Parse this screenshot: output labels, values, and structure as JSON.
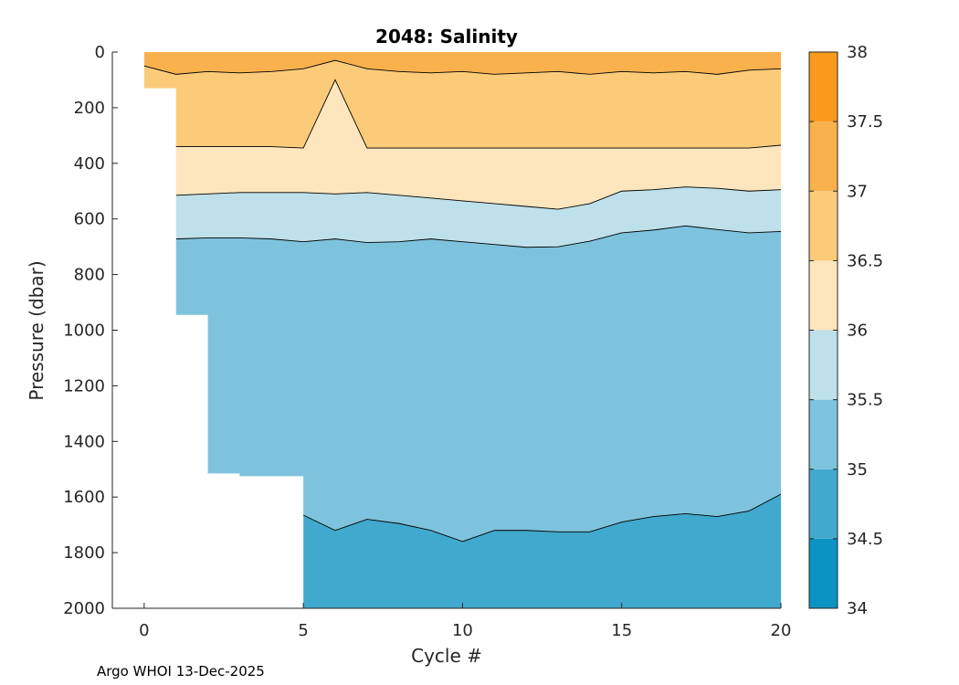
{
  "chart_data": {
    "type": "heatmap",
    "title": "2048:  Salinity",
    "xlabel": "Cycle #",
    "ylabel": "Pressure (dbar)",
    "xlim": [
      -1,
      20
    ],
    "ylim": [
      2000,
      0
    ],
    "xticks": [
      0,
      5,
      10,
      15,
      20
    ],
    "yticks": [
      0,
      200,
      400,
      600,
      800,
      1000,
      1200,
      1400,
      1600,
      1800,
      2000
    ],
    "colorbar": {
      "range": [
        34,
        38
      ],
      "ticks": [
        "34",
        "34.5",
        "35",
        "35.5",
        "36",
        "36.5",
        "37",
        "37.5",
        "38"
      ],
      "levels": [
        {
          "from": 34.0,
          "to": 34.5,
          "color": "#0b93c1"
        },
        {
          "from": 34.5,
          "to": 35.0,
          "color": "#41a9cd"
        },
        {
          "from": 35.0,
          "to": 35.5,
          "color": "#7ec3dd"
        },
        {
          "from": 35.5,
          "to": 36.0,
          "color": "#bee0ea"
        },
        {
          "from": 36.0,
          "to": 36.5,
          "color": "#fde6bd"
        },
        {
          "from": 36.5,
          "to": 37.0,
          "color": "#fbcb7a"
        },
        {
          "from": 37.0,
          "to": 37.5,
          "color": "#f9b14e"
        },
        {
          "from": 37.5,
          "to": 38.0,
          "color": "#f89b1d"
        }
      ]
    },
    "contours": [
      {
        "level": 36.5,
        "color": "#fbcb7a",
        "upper": "#f9b14e",
        "depth": [
          [
            0,
            50
          ],
          [
            1,
            80
          ],
          [
            2,
            70
          ],
          [
            3,
            75
          ],
          [
            4,
            70
          ],
          [
            5,
            60
          ],
          [
            6,
            30
          ],
          [
            7,
            60
          ],
          [
            8,
            70
          ],
          [
            9,
            75
          ],
          [
            10,
            70
          ],
          [
            11,
            80
          ],
          [
            12,
            75
          ],
          [
            13,
            70
          ],
          [
            14,
            80
          ],
          [
            15,
            70
          ],
          [
            16,
            75
          ],
          [
            17,
            70
          ],
          [
            18,
            80
          ],
          [
            19,
            65
          ],
          [
            20,
            60
          ]
        ]
      },
      {
        "level": 36.0,
        "color": "#fde6bd",
        "upper": "#fbcb7a",
        "depth": [
          [
            0,
            340
          ],
          [
            1,
            340
          ],
          [
            2,
            340
          ],
          [
            3,
            340
          ],
          [
            4,
            340
          ],
          [
            5,
            345
          ],
          [
            6,
            100
          ],
          [
            7,
            345
          ],
          [
            8,
            345
          ],
          [
            9,
            345
          ],
          [
            10,
            345
          ],
          [
            11,
            345
          ],
          [
            12,
            345
          ],
          [
            13,
            345
          ],
          [
            14,
            345
          ],
          [
            15,
            345
          ],
          [
            16,
            345
          ],
          [
            17,
            345
          ],
          [
            18,
            345
          ],
          [
            19,
            345
          ],
          [
            20,
            335
          ]
        ]
      },
      {
        "level": 35.5,
        "color": "#bee0ea",
        "upper": "#fde6bd",
        "depth": [
          [
            1,
            515
          ],
          [
            2,
            510
          ],
          [
            3,
            505
          ],
          [
            4,
            505
          ],
          [
            5,
            505
          ],
          [
            6,
            510
          ],
          [
            7,
            505
          ],
          [
            8,
            515
          ],
          [
            9,
            525
          ],
          [
            10,
            535
          ],
          [
            11,
            545
          ],
          [
            12,
            555
          ],
          [
            13,
            565
          ],
          [
            14,
            545
          ],
          [
            15,
            500
          ],
          [
            16,
            495
          ],
          [
            17,
            485
          ],
          [
            18,
            490
          ],
          [
            19,
            500
          ],
          [
            20,
            495
          ]
        ]
      },
      {
        "level": 35.0,
        "color": "#7ec3dd",
        "upper": "#bee0ea",
        "depth": [
          [
            1,
            672
          ],
          [
            2,
            668
          ],
          [
            3,
            668
          ],
          [
            4,
            672
          ],
          [
            5,
            682
          ],
          [
            6,
            672
          ],
          [
            7,
            685
          ],
          [
            8,
            682
          ],
          [
            9,
            672
          ],
          [
            10,
            682
          ],
          [
            11,
            692
          ],
          [
            12,
            702
          ],
          [
            13,
            700
          ],
          [
            14,
            680
          ],
          [
            15,
            650
          ],
          [
            16,
            640
          ],
          [
            17,
            625
          ],
          [
            18,
            638
          ],
          [
            19,
            650
          ],
          [
            20,
            645
          ]
        ]
      },
      {
        "level": 34.5,
        "color": "#41a9cd",
        "upper": "#7ec3dd",
        "depth": [
          [
            5,
            1665
          ],
          [
            6,
            1720
          ],
          [
            7,
            1680
          ],
          [
            8,
            1695
          ],
          [
            9,
            1720
          ],
          [
            10,
            1760
          ],
          [
            11,
            1720
          ],
          [
            12,
            1720
          ],
          [
            13,
            1725
          ],
          [
            14,
            1725
          ],
          [
            15,
            1690
          ],
          [
            16,
            1670
          ],
          [
            17,
            1660
          ],
          [
            18,
            1670
          ],
          [
            19,
            1650
          ],
          [
            20,
            1590
          ]
        ]
      }
    ],
    "data_coverage": [
      {
        "cycle_from": 0,
        "cycle_to": 1,
        "max_pressure": 130
      },
      {
        "cycle_from": 1,
        "cycle_to": 2,
        "max_pressure": 945
      },
      {
        "cycle_from": 2,
        "cycle_to": 3,
        "max_pressure": 1515
      },
      {
        "cycle_from": 3,
        "cycle_to": 5,
        "max_pressure": 1525
      },
      {
        "cycle_from": 5,
        "cycle_to": 20,
        "max_pressure": 2000
      }
    ]
  },
  "footer": "Argo WHOI 13-Dec-2025"
}
